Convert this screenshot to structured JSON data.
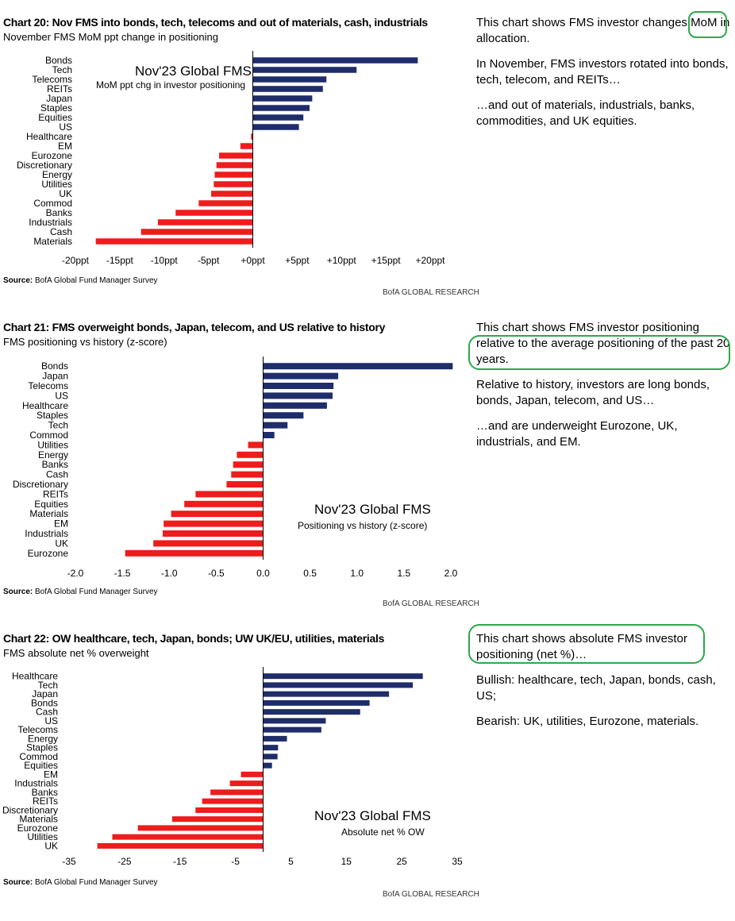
{
  "colors": {
    "positive": "#1f2d6b",
    "negative": "#ee1c1c",
    "highlight": "#2ea84a"
  },
  "chart_data": [
    {
      "type": "bar",
      "orientation": "horizontal",
      "title": "Chart 20: Nov FMS into bonds, tech, telecoms and out of materials, cash, industrials",
      "subtitle": "November FMS MoM ppt change in positioning",
      "inner_title": "Nov'23 Global FMS",
      "inner_subtitle": "MoM ppt chg in investor positioning",
      "categories": [
        "Bonds",
        "Tech",
        "Telecoms",
        "REITs",
        "Japan",
        "Staples",
        "Equities",
        "US",
        "Healthcare",
        "EM",
        "Eurozone",
        "Discretionary",
        "Energy",
        "Utilities",
        "UK",
        "Commod",
        "Banks",
        "Industrials",
        "Cash",
        "Materials"
      ],
      "values": [
        18.6,
        11.7,
        8.3,
        7.9,
        6.7,
        6.4,
        5.7,
        5.2,
        -0.2,
        -1.4,
        -3.8,
        -4.1,
        -4.3,
        -4.4,
        -4.7,
        -6.1,
        -8.7,
        -10.7,
        -12.6,
        -17.7
      ],
      "xlim": [
        -20,
        20
      ],
      "xticks": [
        -20,
        -15,
        -10,
        -5,
        0,
        5,
        10,
        15,
        20
      ],
      "xtick_labels": [
        "-20ppt",
        "-15ppt",
        "-10ppt",
        "-5ppt",
        "+0ppt",
        "+5ppt",
        "+10ppt",
        "+15ppt",
        "+20ppt"
      ],
      "source_label": "Source:",
      "source_text": "BofA Global Fund Manager Survey",
      "brand": "BofA GLOBAL RESEARCH"
    },
    {
      "type": "bar",
      "orientation": "horizontal",
      "title": "Chart 21: FMS overweight bonds, Japan, telecom, and US relative to history",
      "subtitle": "FMS positioning vs history (z-score)",
      "inner_title": "Nov'23 Global FMS",
      "inner_subtitle": "Positioning vs history (z-score)",
      "categories": [
        "Bonds",
        "Japan",
        "Telecoms",
        "US",
        "Healthcare",
        "Staples",
        "Tech",
        "Commod",
        "Utilities",
        "Energy",
        "Banks",
        "Cash",
        "Discretionary",
        "REITs",
        "Equities",
        "Materials",
        "EM",
        "Industrials",
        "UK",
        "Eurozone"
      ],
      "values": [
        2.02,
        0.8,
        0.75,
        0.74,
        0.68,
        0.43,
        0.26,
        0.12,
        -0.16,
        -0.28,
        -0.32,
        -0.34,
        -0.39,
        -0.72,
        -0.84,
        -0.98,
        -1.06,
        -1.07,
        -1.17,
        -1.47
      ],
      "xlim": [
        -2.0,
        2.0
      ],
      "xticks": [
        -2,
        -1.5,
        -1,
        -0.5,
        0,
        0.5,
        1,
        1.5,
        2
      ],
      "xtick_labels": [
        "-2.0",
        "-1.5",
        "-1.0",
        "-0.5",
        "0.0",
        "0.5",
        "1.0",
        "1.5",
        "2.0"
      ],
      "source_label": "Source:",
      "source_text": "BofA Global Fund Manager Survey",
      "brand": "BofA GLOBAL RESEARCH"
    },
    {
      "type": "bar",
      "orientation": "horizontal",
      "title": "Chart 22: OW healthcare, tech, Japan, bonds; UW UK/EU, utilities, materials",
      "subtitle": "FMS absolute net % overweight",
      "inner_title": "Nov'23 Global FMS",
      "inner_subtitle": "Absolute net % OW",
      "categories": [
        "Healthcare",
        "Tech",
        "Japan",
        "Bonds",
        "Cash",
        "US",
        "Telecoms",
        "Energy",
        "Staples",
        "Commod",
        "Equities",
        "EM",
        "Industrials",
        "Banks",
        "REITs",
        "Discretionary",
        "Materials",
        "Eurozone",
        "Utilities",
        "UK"
      ],
      "values": [
        28.8,
        27.0,
        22.7,
        19.2,
        17.5,
        11.3,
        10.5,
        4.3,
        2.7,
        2.6,
        1.6,
        -4.0,
        -6.0,
        -9.5,
        -11.0,
        -12.2,
        -16.4,
        -22.6,
        -27.2,
        -29.9
      ],
      "xlim": [
        -35,
        35
      ],
      "xticks": [
        -35,
        -25,
        -15,
        -5,
        5,
        15,
        25,
        35
      ],
      "xtick_labels": [
        "-35",
        "-25",
        "-15",
        "-5",
        "5",
        "15",
        "25",
        "35"
      ],
      "source_label": "Source:",
      "source_text": "BofA Global Fund Manager Survey",
      "brand": "BofA GLOBAL RESEARCH"
    }
  ],
  "commentary": [
    {
      "p1a": "This chart shows FMS investor changes ",
      "p1b": "MoM",
      "p1c": " in allocation.",
      "p2": "In November, FMS investors rotated into bonds, tech, telecom, and REITs…",
      "p3": "…and out of materials, industrials, banks, commodities, and UK equities."
    },
    {
      "p1a": "This chart shows FMS investor positioning ",
      "p1b": "relative to the average positioning of the past 20 years.",
      "p2": "Relative to history, investors are long bonds, bonds, Japan, telecom, and US…",
      "p3": "…and are underweight Eurozone, UK, industrials, and EM."
    },
    {
      "p1": "This chart shows absolute FMS investor positioning (net %)…",
      "p2": "Bullish: healthcare, tech, Japan, bonds, cash, US;",
      "p3": "Bearish: UK, utilities, Eurozone, materials."
    }
  ]
}
